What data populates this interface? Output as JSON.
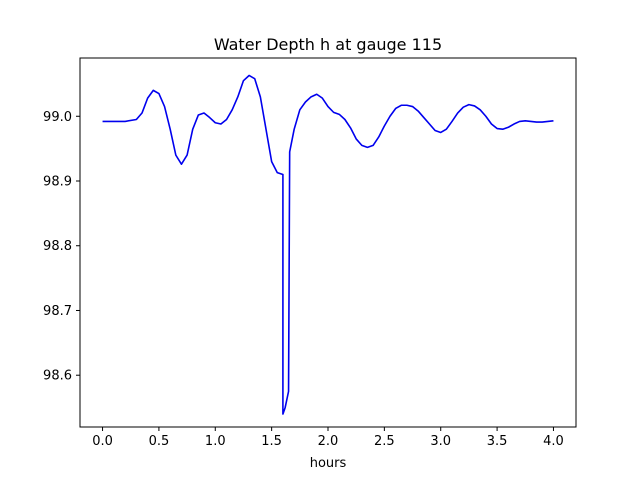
{
  "chart_data": {
    "type": "line",
    "title": "Water Depth h at gauge 115",
    "xlabel": "hours",
    "ylabel": "",
    "xlim": [
      -0.2,
      4.2
    ],
    "ylim": [
      98.52,
      99.09
    ],
    "xticks": [
      0.0,
      0.5,
      1.0,
      1.5,
      2.0,
      2.5,
      3.0,
      3.5,
      4.0
    ],
    "xtick_labels": [
      "0.0",
      "0.5",
      "1.0",
      "1.5",
      "2.0",
      "2.5",
      "3.0",
      "3.5",
      "4.0"
    ],
    "yticks": [
      98.6,
      98.7,
      98.8,
      98.9,
      99.0
    ],
    "ytick_labels": [
      "98.6",
      "98.7",
      "98.8",
      "98.9",
      "99.0"
    ],
    "grid": false,
    "legend": "none",
    "series": [
      {
        "color": "#0000ee",
        "x": [
          0.0,
          0.1,
          0.2,
          0.3,
          0.35,
          0.4,
          0.45,
          0.5,
          0.55,
          0.6,
          0.65,
          0.7,
          0.75,
          0.8,
          0.85,
          0.9,
          0.95,
          1.0,
          1.05,
          1.1,
          1.15,
          1.2,
          1.25,
          1.3,
          1.35,
          1.4,
          1.45,
          1.5,
          1.55,
          1.6,
          1.6,
          1.62,
          1.65,
          1.66,
          1.7,
          1.75,
          1.8,
          1.85,
          1.9,
          1.95,
          2.0,
          2.05,
          2.1,
          2.15,
          2.2,
          2.25,
          2.3,
          2.35,
          2.4,
          2.45,
          2.5,
          2.55,
          2.6,
          2.65,
          2.7,
          2.75,
          2.8,
          2.85,
          2.9,
          2.95,
          3.0,
          3.05,
          3.1,
          3.15,
          3.2,
          3.25,
          3.3,
          3.35,
          3.4,
          3.45,
          3.5,
          3.55,
          3.6,
          3.65,
          3.7,
          3.75,
          3.8,
          3.85,
          3.9,
          3.95,
          4.0
        ],
        "y": [
          98.992,
          98.992,
          98.992,
          98.995,
          99.005,
          99.028,
          99.04,
          99.035,
          99.015,
          98.98,
          98.94,
          98.926,
          98.94,
          98.98,
          99.002,
          99.005,
          98.998,
          98.99,
          98.988,
          98.995,
          99.01,
          99.03,
          99.055,
          99.063,
          99.058,
          99.03,
          98.98,
          98.93,
          98.913,
          98.91,
          98.54,
          98.55,
          98.575,
          98.945,
          98.98,
          99.01,
          99.022,
          99.03,
          99.034,
          99.028,
          99.015,
          99.006,
          99.003,
          98.995,
          98.982,
          98.965,
          98.955,
          98.952,
          98.955,
          98.968,
          98.985,
          99.0,
          99.012,
          99.017,
          99.017,
          99.015,
          99.008,
          98.998,
          98.988,
          98.978,
          98.975,
          98.98,
          98.992,
          99.005,
          99.014,
          99.018,
          99.016,
          99.01,
          99.0,
          98.988,
          98.981,
          98.98,
          98.983,
          98.988,
          98.992,
          98.993,
          98.992,
          98.991,
          98.991,
          98.992,
          98.993
        ]
      }
    ]
  }
}
